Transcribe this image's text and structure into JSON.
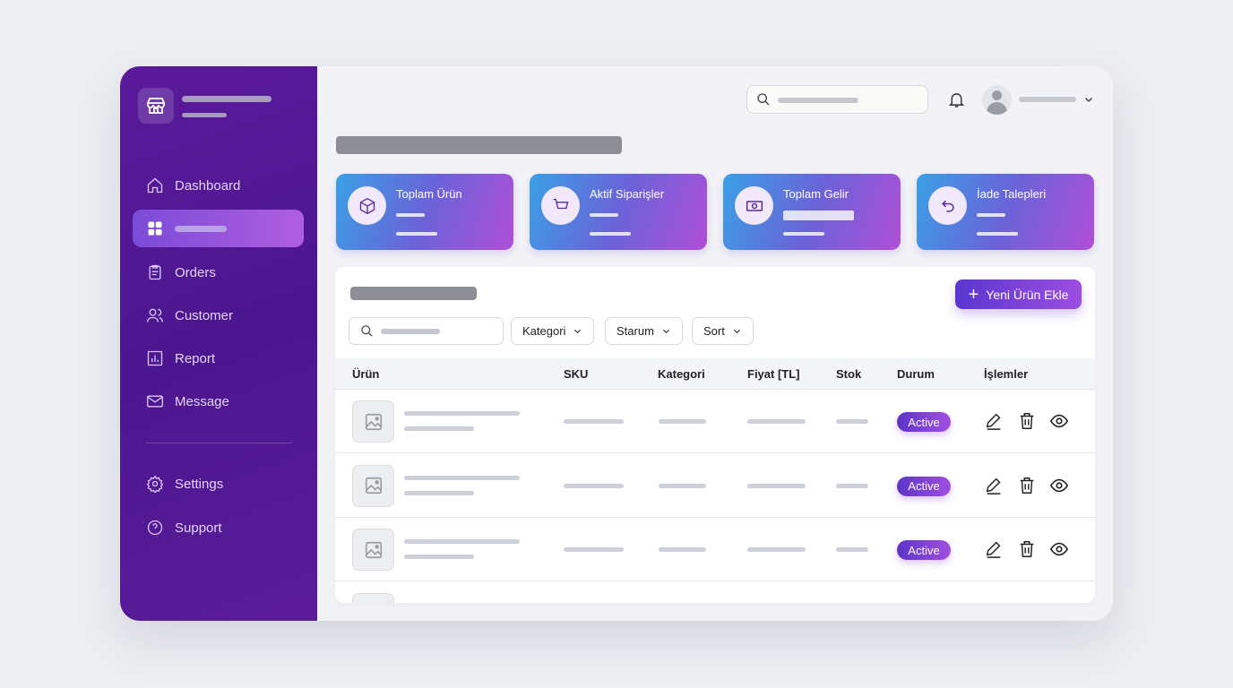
{
  "sidebar": {
    "items": [
      {
        "label": "Dashboard",
        "icon": "home-icon"
      },
      {
        "label": "",
        "icon": "grid-icon",
        "active": true
      },
      {
        "label": "Orders",
        "icon": "clipboard-icon"
      },
      {
        "label": "Customer",
        "icon": "users-icon"
      },
      {
        "label": "Report",
        "icon": "bar-chart-icon"
      },
      {
        "label": "Message",
        "icon": "mail-icon"
      },
      {
        "label": "Settings",
        "icon": "gear-icon"
      },
      {
        "label": "Support",
        "icon": "help-icon"
      }
    ]
  },
  "stats": [
    {
      "title": "Toplam Ürün",
      "icon": "box-icon"
    },
    {
      "title": "Aktif Siparişler",
      "icon": "cart-icon"
    },
    {
      "title": "Toplam Gelir",
      "icon": "money-icon"
    },
    {
      "title": "İade Talepleri",
      "icon": "return-icon"
    }
  ],
  "toolbar": {
    "add_label": "Yeni Ürün Ekle",
    "filters": [
      "Kategori",
      "Starum",
      "Sort"
    ]
  },
  "table": {
    "columns": [
      "Ürün",
      "SKU",
      "Kategori",
      "Fiyat [TL]",
      "Stok",
      "Durum",
      "İşlemler"
    ],
    "rows": [
      {
        "status": "Active"
      },
      {
        "status": "Active"
      },
      {
        "status": "Active"
      }
    ]
  },
  "colors": {
    "accent": "#6a3fd6",
    "sidebar": "#521a94"
  }
}
